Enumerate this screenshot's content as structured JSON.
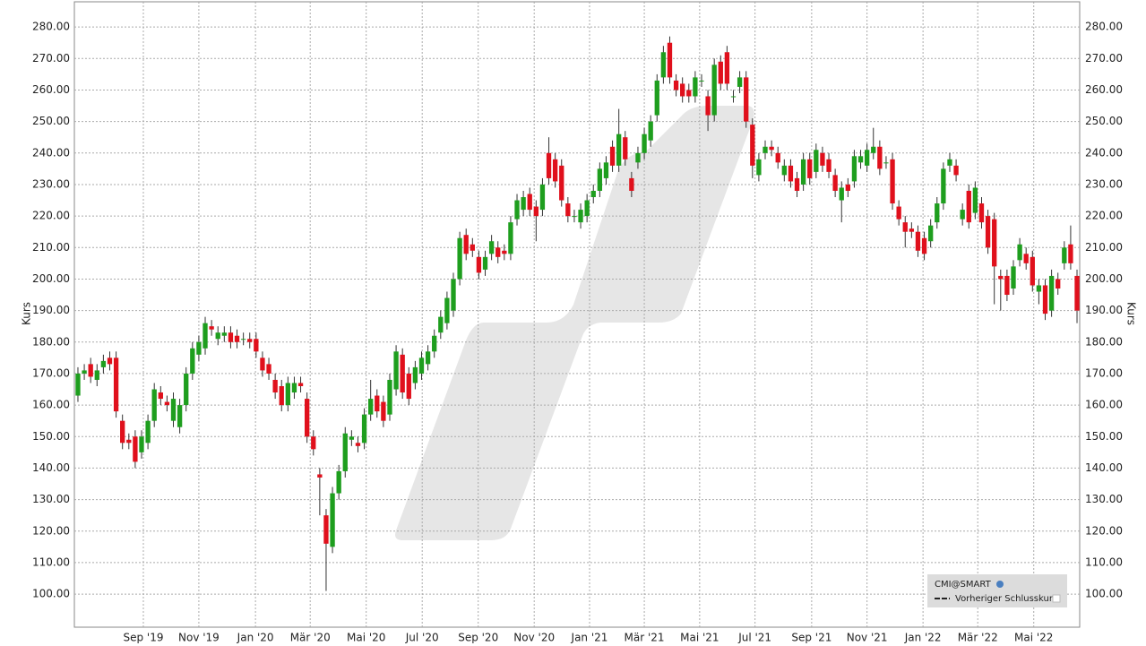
{
  "chart_data": {
    "type": "candlestick",
    "y_axis_label": "Kurs",
    "xlim": [
      -0.56,
      157.42
    ],
    "ylim": [
      89.5,
      288
    ],
    "xticks": [
      {
        "value": 10.28,
        "label": "Sep '19"
      },
      {
        "value": 19.0,
        "label": "Nov '19"
      },
      {
        "value": 27.9,
        "label": "Jan '20"
      },
      {
        "value": 36.5,
        "label": "Mär '20"
      },
      {
        "value": 45.3,
        "label": "Mai '20"
      },
      {
        "value": 54.1,
        "label": "Jul '20"
      },
      {
        "value": 62.9,
        "label": "Sep '20"
      },
      {
        "value": 71.7,
        "label": "Nov '20"
      },
      {
        "value": 80.4,
        "label": "Jan '21"
      },
      {
        "value": 89.0,
        "label": "Mär '21"
      },
      {
        "value": 97.7,
        "label": "Mai '21"
      },
      {
        "value": 106.4,
        "label": "Jul '21"
      },
      {
        "value": 115.3,
        "label": "Sep '21"
      },
      {
        "value": 124.0,
        "label": "Nov '21"
      },
      {
        "value": 132.8,
        "label": "Jan '22"
      },
      {
        "value": 141.4,
        "label": "Mär '22"
      },
      {
        "value": 150.2,
        "label": "Mai '22"
      }
    ],
    "yticks": [
      {
        "value": 100,
        "label": "100.00"
      },
      {
        "value": 110,
        "label": "110.00"
      },
      {
        "value": 120,
        "label": "120.00"
      },
      {
        "value": 130,
        "label": "130.00"
      },
      {
        "value": 140,
        "label": "140.00"
      },
      {
        "value": 150,
        "label": "150.00"
      },
      {
        "value": 160,
        "label": "160.00"
      },
      {
        "value": 170,
        "label": "170.00"
      },
      {
        "value": 180,
        "label": "180.00"
      },
      {
        "value": 190,
        "label": "190.00"
      },
      {
        "value": 200,
        "label": "200.00"
      },
      {
        "value": 210,
        "label": "210.00"
      },
      {
        "value": 220,
        "label": "220.00"
      },
      {
        "value": 230,
        "label": "230.00"
      },
      {
        "value": 240,
        "label": "240.00"
      },
      {
        "value": 250,
        "label": "250.00"
      },
      {
        "value": 260,
        "label": "260.00"
      },
      {
        "value": 270,
        "label": "270.00"
      },
      {
        "value": 280,
        "label": "280.00"
      }
    ],
    "grid": true,
    "legend_position": "bottom-right",
    "up_color": "#1e9e1e",
    "down_color": "#e0101c",
    "series": [
      {
        "name": "CMI@SMART",
        "open": [
          163,
          170,
          173,
          168,
          172,
          175,
          175,
          155,
          149,
          150,
          145,
          148,
          155,
          164,
          161,
          155,
          153,
          160,
          170,
          176,
          178,
          185,
          181,
          182,
          183,
          182,
          181,
          181,
          181,
          175,
          173,
          168,
          166,
          160,
          164,
          167,
          162,
          150,
          138,
          125,
          115,
          132,
          139,
          149,
          148,
          148,
          157,
          163,
          161,
          157,
          165,
          176,
          170,
          167,
          170,
          173,
          177,
          183,
          186,
          190,
          200,
          214,
          211,
          207,
          203,
          208,
          210,
          209,
          208,
          219,
          222,
          227,
          223,
          222,
          240,
          238,
          236,
          224,
          220,
          218,
          220,
          226,
          228,
          232,
          242,
          236,
          245,
          232,
          237,
          240,
          244,
          252,
          264,
          275,
          263,
          262,
          260,
          258,
          263,
          258,
          252,
          269,
          272,
          258,
          261,
          264,
          249,
          233,
          240,
          242,
          240,
          233,
          236,
          232,
          230,
          238,
          234,
          240,
          238,
          233,
          225,
          230,
          231,
          237,
          236,
          240,
          242,
          237,
          238,
          223,
          218,
          216,
          215,
          213,
          212,
          218,
          224,
          236,
          236,
          219,
          228,
          221,
          224,
          220,
          219,
          201,
          201,
          197,
          206,
          208,
          207,
          196,
          198,
          190,
          200,
          205,
          211,
          201
        ],
        "high": [
          172,
          173,
          175,
          173,
          176,
          177,
          177,
          157,
          151,
          152,
          152,
          157,
          167,
          166,
          163,
          164,
          162,
          172,
          180,
          182,
          188,
          187,
          185,
          185,
          185,
          184,
          183,
          183,
          183,
          177,
          175,
          170,
          168,
          169,
          169,
          169,
          164,
          152,
          140,
          127,
          134,
          141,
          153,
          152,
          150,
          159,
          168,
          165,
          163,
          170,
          179,
          178,
          172,
          174,
          177,
          179,
          184,
          190,
          196,
          202,
          215,
          216,
          213,
          209,
          209,
          214,
          212,
          211,
          220,
          227,
          228,
          229,
          225,
          232,
          245,
          240,
          238,
          226,
          222,
          224,
          227,
          230,
          237,
          239,
          244,
          254,
          247,
          234,
          242,
          248,
          252,
          265,
          274,
          277,
          265,
          264,
          262,
          266,
          265,
          260,
          270,
          271,
          274,
          260,
          266,
          266,
          251,
          240,
          244,
          244,
          242,
          238,
          238,
          234,
          240,
          240,
          243,
          242,
          240,
          235,
          231,
          232,
          241,
          241,
          243,
          248,
          244,
          239,
          240,
          225,
          220,
          218,
          217,
          215,
          219,
          226,
          237,
          240,
          238,
          224,
          230,
          231,
          226,
          222,
          221,
          203,
          203,
          206,
          213,
          210,
          209,
          200,
          200,
          203,
          202,
          212,
          217,
          203
        ],
        "low": [
          161,
          168,
          167,
          166,
          170,
          171,
          156,
          146,
          146,
          140,
          143,
          146,
          153,
          160,
          158,
          153,
          151,
          158,
          168,
          174,
          176,
          182,
          179,
          180,
          178,
          178,
          179,
          178,
          175,
          169,
          168,
          162,
          158,
          158,
          162,
          164,
          148,
          144,
          125,
          101,
          113,
          130,
          137,
          147,
          145,
          146,
          155,
          156,
          153,
          155,
          163,
          162,
          160,
          165,
          168,
          171,
          175,
          181,
          184,
          188,
          198,
          206,
          207,
          200,
          201,
          206,
          205,
          206,
          206,
          217,
          220,
          220,
          212,
          220,
          230,
          229,
          223,
          218,
          218,
          216,
          218,
          224,
          226,
          230,
          234,
          234,
          236,
          226,
          235,
          238,
          242,
          250,
          262,
          262,
          258,
          256,
          256,
          256,
          261,
          247,
          250,
          260,
          260,
          256,
          259,
          248,
          232,
          231,
          238,
          239,
          235,
          231,
          229,
          226,
          228,
          230,
          232,
          234,
          232,
          226,
          218,
          226,
          229,
          235,
          234,
          238,
          233,
          235,
          222,
          217,
          210,
          213,
          207,
          206,
          210,
          216,
          222,
          234,
          231,
          217,
          216,
          219,
          216,
          208,
          192,
          190,
          193,
          195,
          204,
          203,
          196,
          192,
          187,
          188,
          195,
          203,
          203,
          186
        ],
        "close": [
          170,
          171,
          169,
          171,
          174,
          173,
          158,
          148,
          148,
          142,
          150,
          155,
          165,
          162,
          160,
          162,
          160,
          170,
          178,
          180,
          186,
          184,
          183,
          183,
          180,
          180,
          181,
          180,
          177,
          171,
          170,
          164,
          160,
          167,
          167,
          166,
          150,
          146,
          137,
          116,
          132,
          139,
          151,
          150,
          147,
          157,
          162,
          158,
          155,
          168,
          177,
          164,
          162,
          172,
          175,
          177,
          182,
          188,
          194,
          200,
          213,
          208,
          209,
          202,
          207,
          212,
          207,
          208,
          218,
          225,
          226,
          222,
          220,
          230,
          232,
          231,
          225,
          220,
          220,
          222,
          225,
          228,
          235,
          237,
          236,
          246,
          238,
          228,
          240,
          246,
          250,
          263,
          272,
          264,
          260,
          258,
          258,
          264,
          263,
          252,
          268,
          262,
          262,
          258,
          264,
          250,
          236,
          238,
          242,
          241,
          237,
          236,
          231,
          228,
          238,
          232,
          241,
          236,
          234,
          228,
          229,
          228,
          239,
          239,
          241,
          242,
          235,
          237,
          224,
          219,
          215,
          215,
          209,
          208,
          217,
          224,
          235,
          238,
          233,
          222,
          218,
          229,
          218,
          210,
          204,
          200,
          195,
          204,
          211,
          205,
          198,
          198,
          189,
          201,
          197,
          210,
          205,
          190
        ]
      }
    ],
    "legend_extra": "Vorheriger Schlusskurs"
  }
}
